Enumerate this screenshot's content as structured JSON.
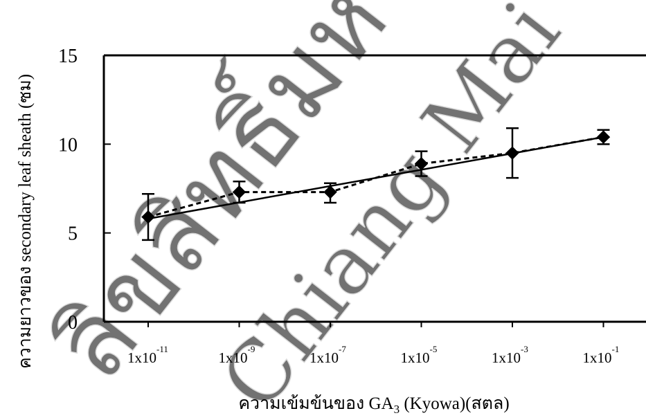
{
  "chart_data": {
    "type": "line",
    "x_categories": [
      "1x10^-11",
      "1x10^-9",
      "1x10^-7",
      "1x10^-5",
      "1x10^-3",
      "1x10^-1"
    ],
    "x_tick_labels": [
      {
        "base": "1x10",
        "exp": "-11"
      },
      {
        "base": "1x10",
        "exp": "-9"
      },
      {
        "base": "1x10",
        "exp": "-7"
      },
      {
        "base": "1x10",
        "exp": "-5"
      },
      {
        "base": "1x10",
        "exp": "-3"
      },
      {
        "base": "1x10",
        "exp": "-1"
      }
    ],
    "ylim": [
      0,
      15
    ],
    "y_ticks": [
      0,
      5,
      10,
      15
    ],
    "y_tick_labels": [
      "0",
      "5",
      "10",
      "15"
    ],
    "ylabel": "ความยาวของ secondary leaf sheath (ซม)",
    "xlabel_parts": {
      "prefix": "ความเข้มข้นของ GA",
      "sub": "3",
      "suffix": " (Kyowa)(สตล)"
    },
    "grid": false,
    "legend": "none",
    "series": [
      {
        "style": "dashed",
        "marker": "diamond",
        "values": [
          5.9,
          7.3,
          7.3,
          8.9,
          9.5,
          10.4
        ],
        "error_low": [
          4.6,
          6.7,
          6.7,
          8.2,
          8.1,
          10.0
        ],
        "error_high": [
          7.2,
          7.9,
          7.8,
          9.6,
          10.9,
          10.8
        ]
      },
      {
        "style": "solid",
        "type": "trendline",
        "start": 5.8,
        "end": 10.4
      }
    ],
    "colors": {
      "ink": "#000000",
      "watermark": "#bdbdbd"
    }
  },
  "watermark": {
    "lines": [
      "ลิขสิทธิ์มหาวิทยาลัยเชียงใหม่",
      "Chiang Mai University"
    ]
  }
}
